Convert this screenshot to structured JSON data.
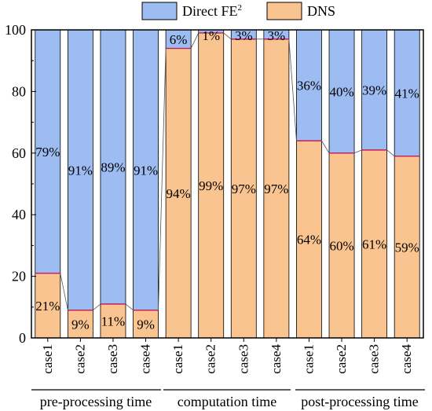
{
  "chart_data": {
    "type": "bar",
    "stacked": true,
    "categories": [
      "case1",
      "case2",
      "case3",
      "case4",
      "case1",
      "case2",
      "case3",
      "case4",
      "case1",
      "case2",
      "case3",
      "case4"
    ],
    "groups": [
      {
        "label": "pre-processing time",
        "categories": [
          "case1",
          "case2",
          "case3",
          "case4"
        ]
      },
      {
        "label": "computation time",
        "categories": [
          "case1",
          "case2",
          "case3",
          "case4"
        ]
      },
      {
        "label": "post-processing time",
        "categories": [
          "case1",
          "case2",
          "case3",
          "case4"
        ]
      }
    ],
    "series": [
      {
        "name": "DNS",
        "color": "#f9c48f",
        "values": [
          21,
          9,
          11,
          9,
          94,
          99,
          97,
          97,
          64,
          60,
          61,
          59
        ],
        "labels": [
          "21%",
          "9%",
          "11%",
          "9%",
          "94%",
          "99%",
          "97%",
          "97%",
          "64%",
          "60%",
          "61%",
          "59%"
        ]
      },
      {
        "name_main": "Direct FE",
        "name_sup": "2",
        "color": "#9dbcf2",
        "values": [
          79,
          91,
          89,
          91,
          6,
          1,
          3,
          3,
          36,
          40,
          39,
          41
        ],
        "labels": [
          "79%",
          "91%",
          "89%",
          "91%",
          "6%",
          "1%",
          "3%",
          "3%",
          "36%",
          "40%",
          "39%",
          "41%"
        ]
      }
    ],
    "ylim": [
      0,
      100
    ],
    "yticks": [
      "0",
      "20",
      "40",
      "60",
      "80",
      "100"
    ],
    "xlabel": "",
    "ylabel": "",
    "legend_position": "top-center",
    "grid": false,
    "boundary_line_color": "#c02060"
  }
}
